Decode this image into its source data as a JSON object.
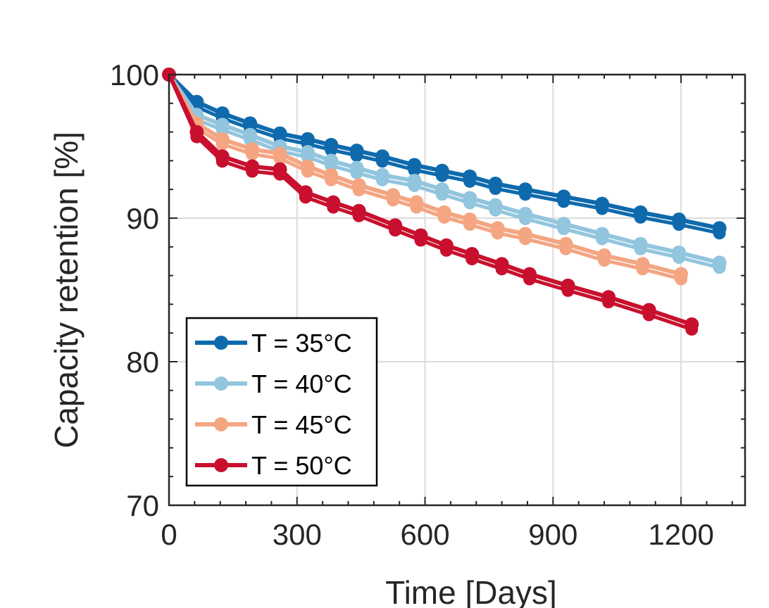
{
  "chart_data": {
    "type": "line",
    "title": "",
    "xlabel": "Time [Days]",
    "ylabel": "Capacity retention [%]",
    "xlim": [
      0,
      1350
    ],
    "ylim": [
      70,
      100
    ],
    "xticks": [
      0,
      300,
      600,
      900,
      1200
    ],
    "yticks": [
      70,
      80,
      90,
      100
    ],
    "xtick_labels": [
      "0",
      "300",
      "600",
      "900",
      "1200"
    ],
    "ytick_labels": [
      "70",
      "80",
      "90",
      "100"
    ],
    "grid": true,
    "legend_position": "bottom-left",
    "series": [
      {
        "name": "T = 35°C",
        "color": "#0e6aad",
        "x": [
          0,
          65,
          125,
          190,
          260,
          325,
          380,
          440,
          500,
          575,
          640,
          705,
          765,
          835,
          925,
          1015,
          1105,
          1195,
          1290
        ],
        "y": [
          100,
          98.1,
          97.3,
          96.6,
          95.9,
          95.5,
          95.1,
          94.7,
          94.3,
          93.7,
          93.3,
          92.9,
          92.4,
          92.0,
          91.5,
          91.0,
          90.4,
          89.9,
          89.3
        ]
      },
      {
        "name": "T = 40°C",
        "color": "#92c5de",
        "x": [
          0,
          65,
          125,
          190,
          260,
          325,
          380,
          440,
          500,
          575,
          640,
          705,
          765,
          835,
          925,
          1015,
          1105,
          1195,
          1290
        ],
        "y": [
          100,
          97.2,
          96.5,
          95.8,
          95.0,
          94.6,
          94.0,
          93.5,
          93.0,
          92.6,
          92.0,
          91.4,
          90.9,
          90.3,
          89.6,
          88.9,
          88.2,
          87.6,
          86.9
        ]
      },
      {
        "name": "T = 45°C",
        "color": "#f4a582",
        "x": [
          0,
          65,
          125,
          195,
          260,
          325,
          380,
          445,
          525,
          580,
          645,
          705,
          770,
          835,
          930,
          1020,
          1110,
          1200
        ],
        "y": [
          100,
          96.6,
          95.5,
          94.8,
          94.5,
          93.6,
          93.0,
          92.3,
          91.6,
          91.1,
          90.4,
          89.9,
          89.3,
          88.9,
          88.2,
          87.4,
          86.8,
          86.1
        ]
      },
      {
        "name": "T = 50°C",
        "color": "#c8102e",
        "x": [
          0,
          65,
          125,
          195,
          260,
          320,
          385,
          445,
          530,
          590,
          650,
          710,
          780,
          845,
          935,
          1030,
          1125,
          1225
        ],
        "y": [
          100,
          96.0,
          94.3,
          93.6,
          93.4,
          91.8,
          91.1,
          90.5,
          89.5,
          88.8,
          88.1,
          87.5,
          86.8,
          86.1,
          85.3,
          84.5,
          83.6,
          82.6
        ]
      }
    ]
  }
}
